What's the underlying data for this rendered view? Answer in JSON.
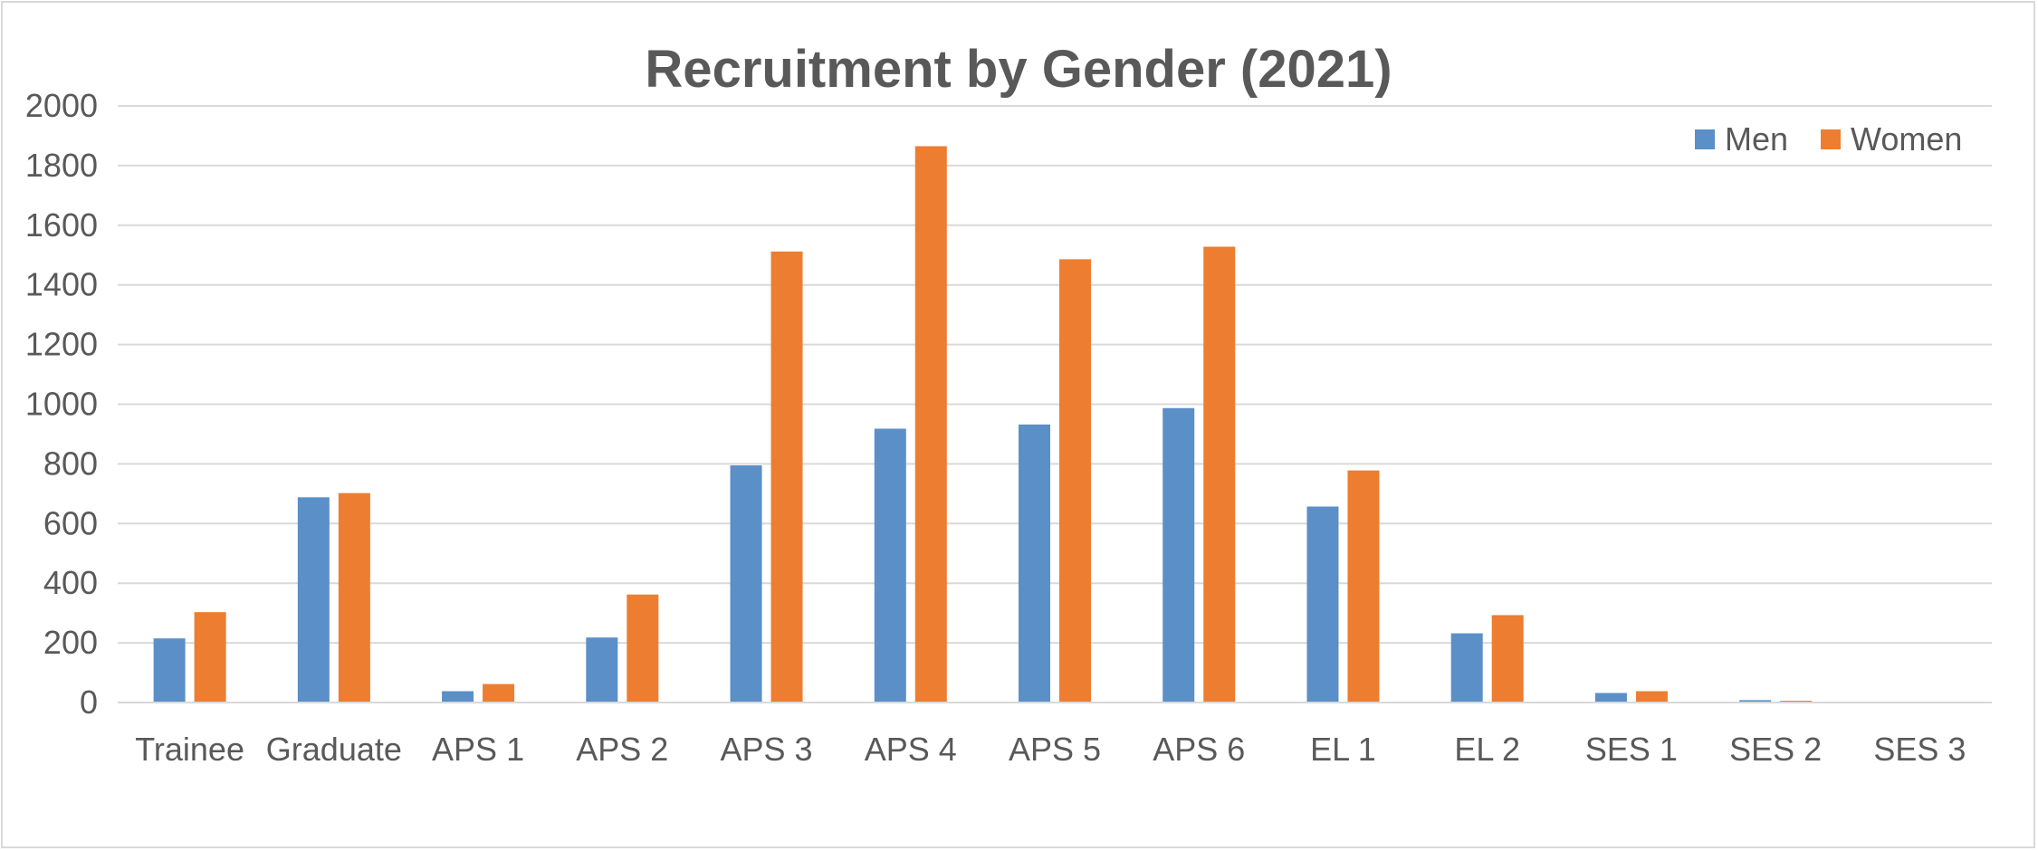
{
  "chart_data": {
    "type": "bar",
    "title": "Recruitment by Gender (2021)",
    "xlabel": "",
    "ylabel": "",
    "categories": [
      "Trainee",
      "Graduate",
      "APS 1",
      "APS 2",
      "APS 3",
      "APS 4",
      "APS 5",
      "APS 6",
      "EL 1",
      "EL 2",
      "SES 1",
      "SES 2",
      "SES 3"
    ],
    "series": [
      {
        "name": "Men",
        "color": "#5B8FC7",
        "values": [
          215,
          688,
          38,
          218,
          795,
          918,
          932,
          987,
          657,
          232,
          32,
          8,
          0
        ]
      },
      {
        "name": "Women",
        "color": "#ED7D31",
        "values": [
          303,
          702,
          62,
          362,
          1512,
          1865,
          1486,
          1528,
          778,
          293,
          38,
          6,
          0
        ]
      }
    ],
    "ylim": [
      0,
      2000
    ],
    "yticks": [
      0,
      200,
      400,
      600,
      800,
      1000,
      1200,
      1400,
      1600,
      1800,
      2000
    ],
    "grid": true,
    "legend_position": "top-right"
  }
}
